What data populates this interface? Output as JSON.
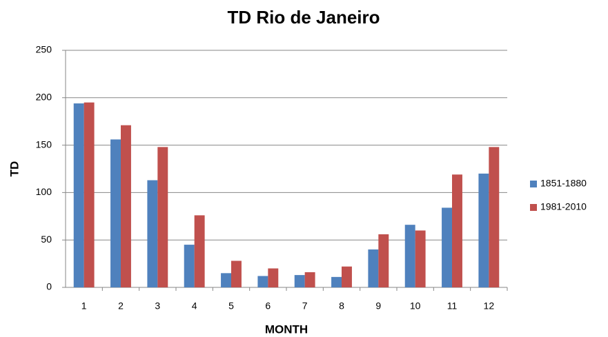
{
  "chart_data": {
    "type": "bar",
    "title": "TD Rio de Janeiro",
    "x_label": "MONTH",
    "y_label": "TD",
    "categories": [
      "1",
      "2",
      "3",
      "4",
      "5",
      "6",
      "7",
      "8",
      "9",
      "10",
      "11",
      "12"
    ],
    "series": [
      {
        "name": "1851-1880",
        "color": "#4f81bd",
        "values": [
          194,
          156,
          113,
          45,
          15,
          12,
          13,
          11,
          40,
          66,
          84,
          120
        ]
      },
      {
        "name": "1981-2010",
        "color": "#c0504d",
        "values": [
          195,
          171,
          148,
          76,
          28,
          20,
          16,
          22,
          56,
          60,
          119,
          148
        ]
      }
    ],
    "ylim": [
      0,
      250
    ],
    "yticks": [
      0,
      50,
      100,
      150,
      200,
      250
    ],
    "grid": true,
    "legend": "right"
  }
}
